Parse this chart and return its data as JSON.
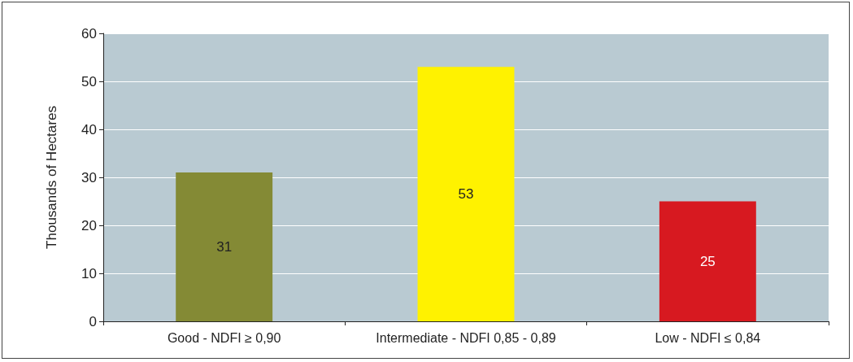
{
  "chart_data": {
    "type": "bar",
    "ylabel": "Thousands of Hectares",
    "categories": [
      "Good - NDFI ≥ 0,90",
      "Intermediate - NDFI 0,85 - 0,89",
      "Low - NDFI ≤ 0,84"
    ],
    "values": [
      31,
      53,
      25
    ],
    "colors": [
      "#848a35",
      "#fff200",
      "#d71920"
    ],
    "ylim": [
      0,
      60
    ],
    "yticks": [
      0,
      10,
      20,
      30,
      40,
      50,
      60
    ],
    "grid": "y",
    "data_labels": true
  }
}
